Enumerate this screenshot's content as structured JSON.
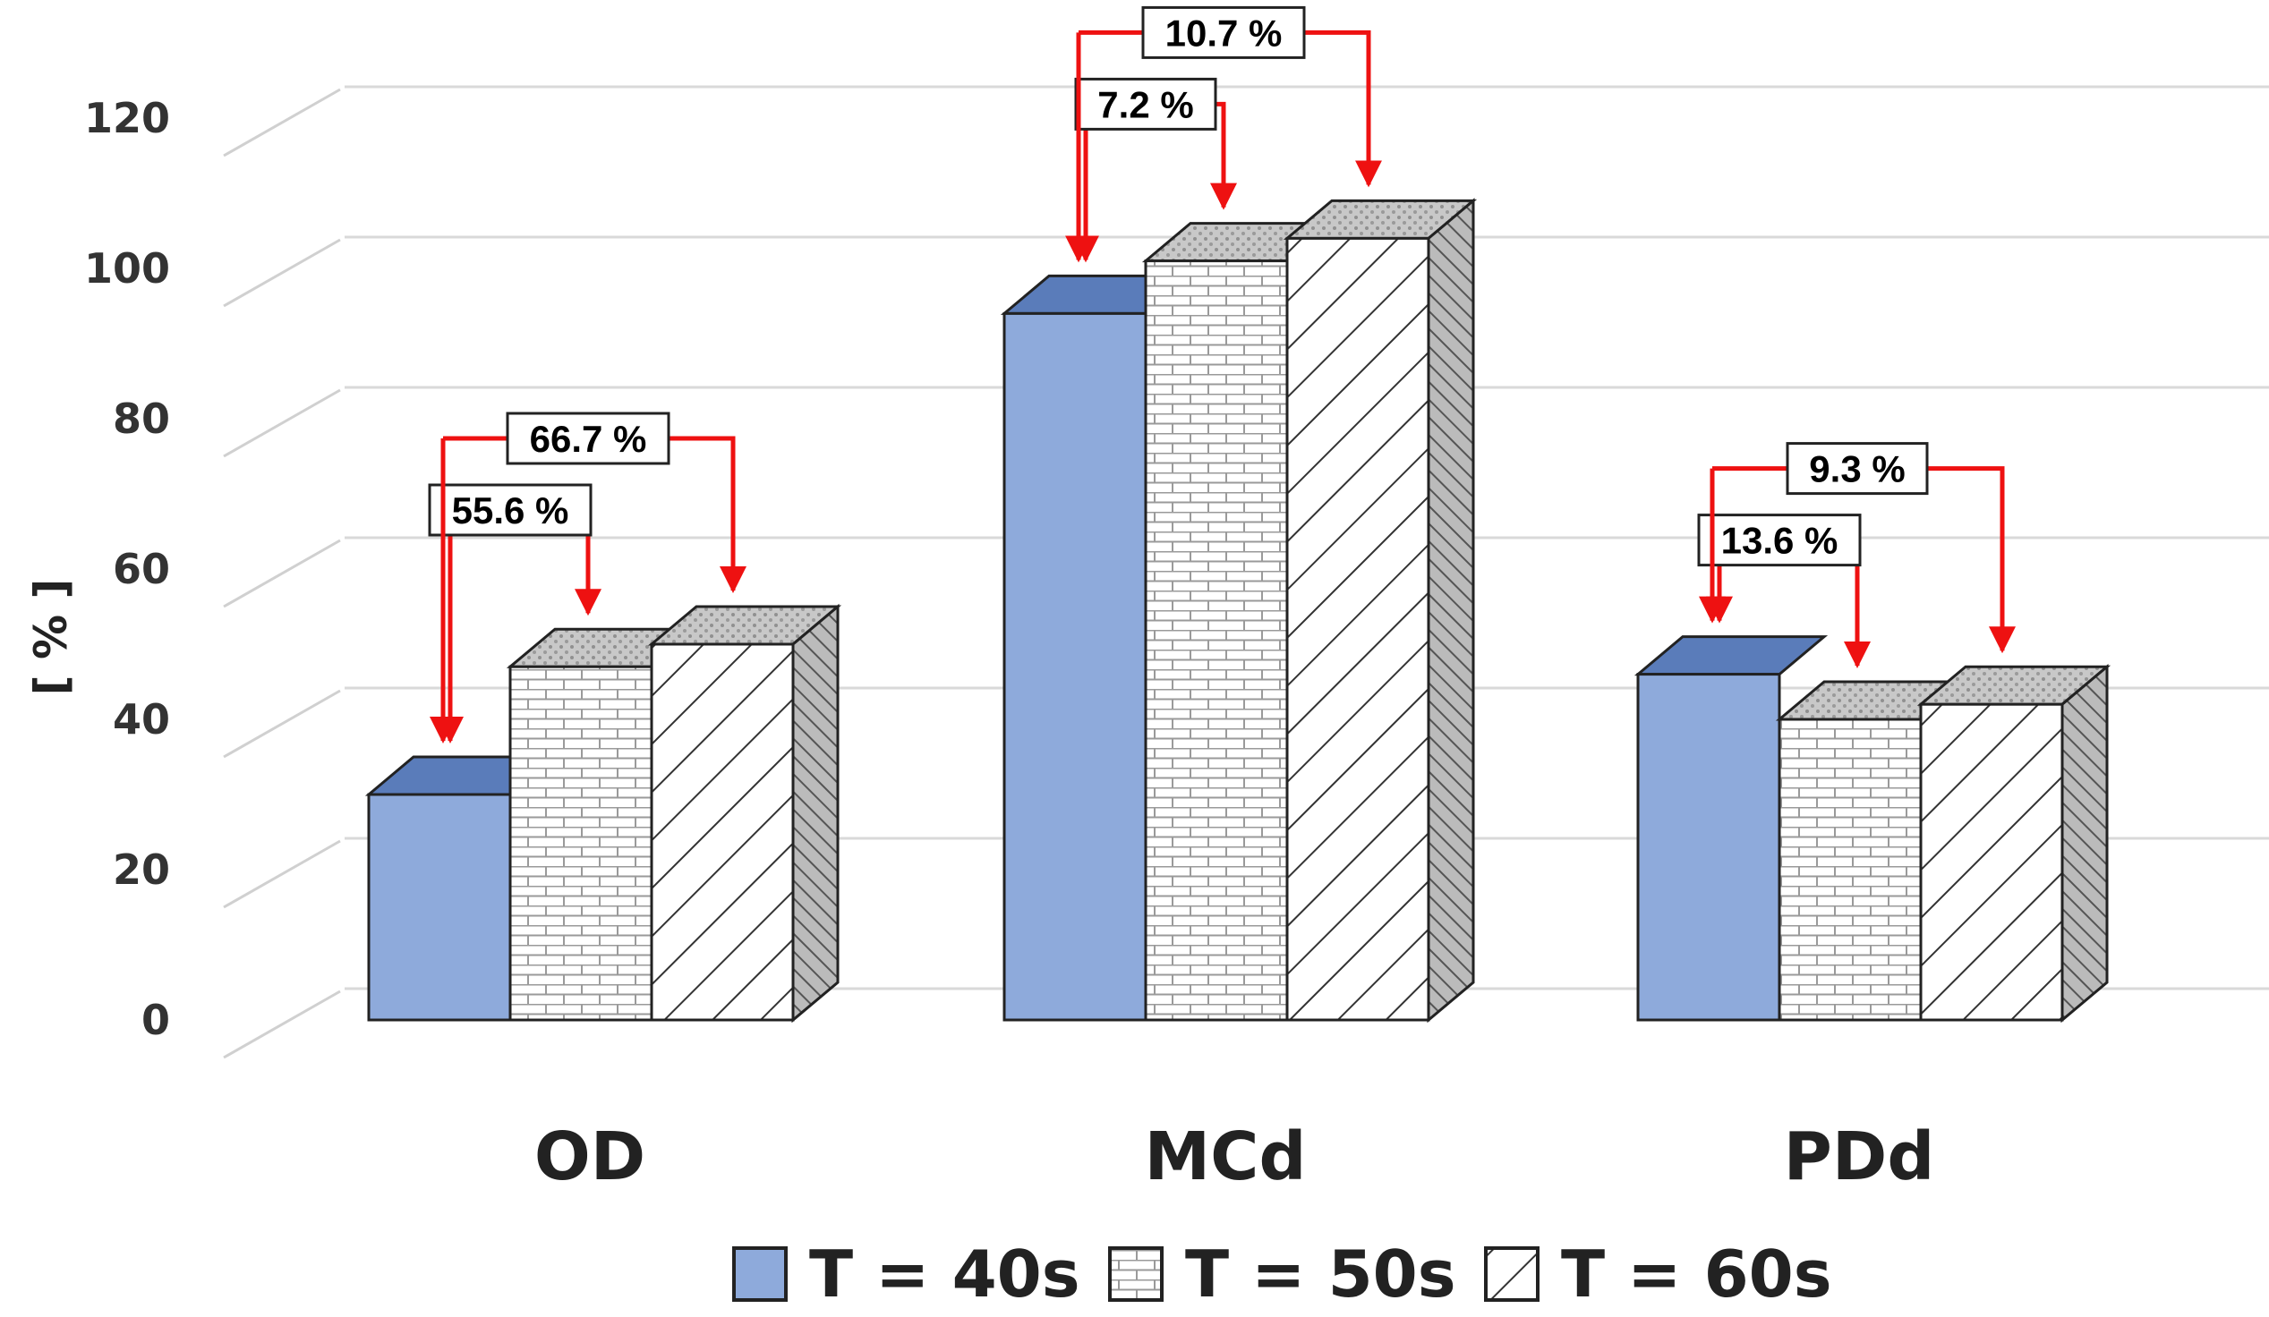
{
  "chart_data": {
    "type": "bar",
    "title": "",
    "xlabel": "",
    "ylabel": "[ % ]",
    "ylim": [
      0,
      120
    ],
    "yticks": [
      "0",
      "20",
      "40",
      "60",
      "80",
      "100",
      "120"
    ],
    "grid": true,
    "legend_position": "bottom",
    "categories": [
      "OD",
      "MCd",
      "PDd"
    ],
    "series": [
      {
        "name": "T = 40s",
        "pattern": "solid",
        "color": "#8eaadb",
        "values": [
          30,
          94,
          46
        ]
      },
      {
        "name": "T = 50s",
        "pattern": "brick",
        "color": "#ffffff",
        "values": [
          47,
          101,
          40
        ]
      },
      {
        "name": "T = 60s",
        "pattern": "diagonal",
        "color": "#ffffff",
        "values": [
          50,
          104,
          42
        ]
      }
    ],
    "annotations": [
      {
        "category": "OD",
        "from": "T = 40s",
        "to": "T = 50s",
        "label": "55.6 %",
        "arrow_color": "#ee1111"
      },
      {
        "category": "OD",
        "from": "T = 40s",
        "to": "T = 60s",
        "label": "66.7 %",
        "arrow_color": "#ee1111"
      },
      {
        "category": "MCd",
        "from": "T = 40s",
        "to": "T = 50s",
        "label": "7.2 %",
        "arrow_color": "#ee1111"
      },
      {
        "category": "MCd",
        "from": "T = 40s",
        "to": "T = 60s",
        "label": "10.7 %",
        "arrow_color": "#ee1111"
      },
      {
        "category": "PDd",
        "from": "T = 40s",
        "to": "T = 50s",
        "label": "13.6 %",
        "arrow_color": "#ee1111"
      },
      {
        "category": "PDd",
        "from": "T = 40s",
        "to": "T = 60s",
        "label": "9.3 %",
        "arrow_color": "#ee1111"
      }
    ]
  }
}
